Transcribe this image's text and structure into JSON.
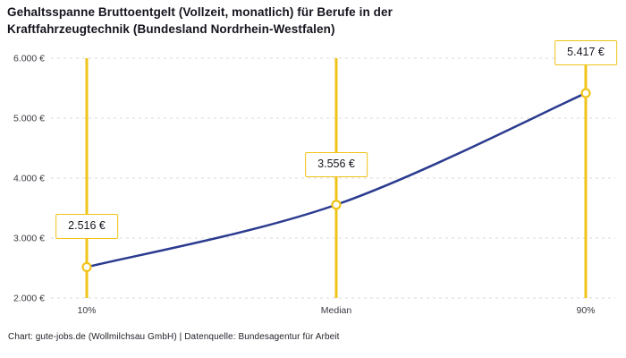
{
  "title": "Gehaltsspanne Bruttoentgelt (Vollzeit, monatlich) für Berufe in der Kraftfahrzeugtechnik (Bundesland Nordrhein-Westfalen)",
  "footer": "Chart: gute-jobs.de (Wollmilchsau GmbH) | Datenquelle: Bundesagentur für Arbeit",
  "colors": {
    "accent_yellow": "#f0c318",
    "line_blue": "#2b3b8f",
    "grid": "#d9d9d9",
    "axis_text": "#3a3a42",
    "marker_fill": "#ffffff"
  },
  "chart_data": {
    "type": "line",
    "title": "Gehaltsspanne Bruttoentgelt (Vollzeit, monatlich) für Berufe in der Kraftfahrzeugtechnik (Bundesland Nordrhein-Westfalen)",
    "categories": [
      "10%",
      "Median",
      "90%"
    ],
    "values": [
      2516,
      3556,
      5417
    ],
    "point_labels": [
      "2.516 €",
      "3.556 €",
      "5.417 €"
    ],
    "xlabel": "",
    "ylabel": "",
    "ylim": [
      2000,
      6000
    ],
    "yticks": [
      2000,
      3000,
      4000,
      5000,
      6000
    ],
    "ytick_labels": [
      "2.000 €",
      "3.000 €",
      "4.000 €",
      "5.000 €",
      "6.000 €"
    ],
    "grid": true,
    "grid_style": "dashed",
    "legend": false,
    "marker_style": "open-circle",
    "vertical_guides": true,
    "source_caption": "Chart: gute-jobs.de (Wollmilchsau GmbH) | Datenquelle: Bundesagentur für Arbeit"
  }
}
